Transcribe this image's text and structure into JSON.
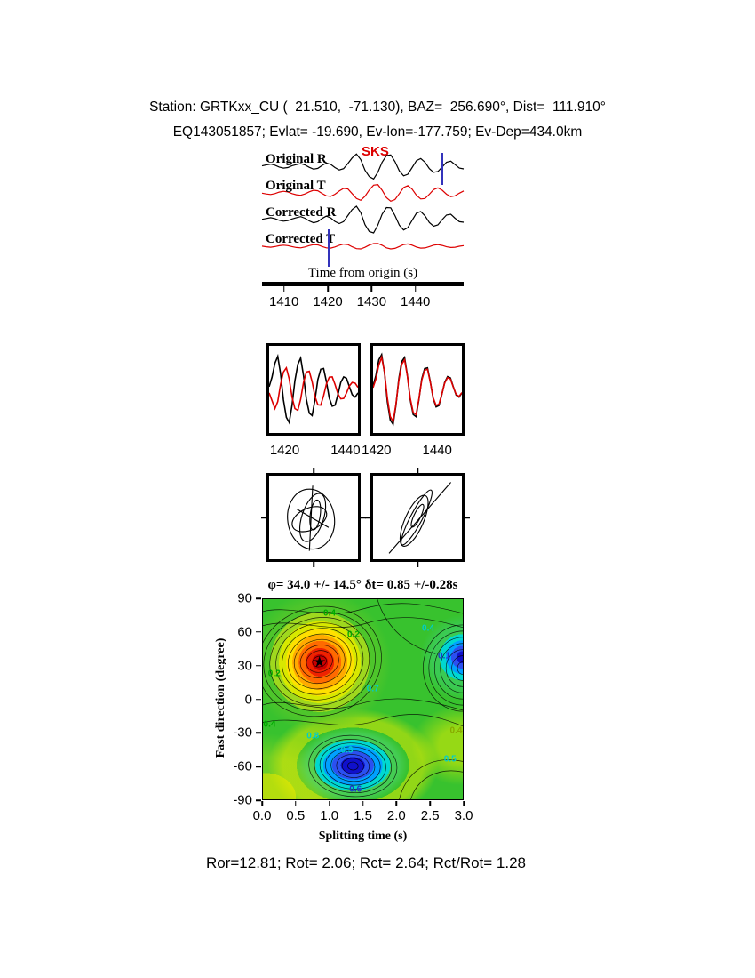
{
  "header": {
    "line1": "Station: GRTKxx_CU (  21.510,  -71.130), BAZ=  256.690°, Dist=  111.910°",
    "line2": "EQ143051857; Evlat= -19.690, Ev-lon=-177.759; Ev-Dep=434.0km"
  },
  "footer": {
    "stats": "Ror=12.81; Rot= 2.06; Rct= 2.64; Rct/Rot= 1.28"
  },
  "chart_data": [
    {
      "type": "line",
      "name": "seismogram-panel",
      "phase_label": "SKS",
      "xlabel": "Time from origin (s)",
      "x_ticks": [
        1410,
        1420,
        1430,
        1440
      ],
      "x_range": [
        1405,
        1451
      ],
      "window_markers": [
        1420,
        1446
      ],
      "series": [
        {
          "name": "Original R",
          "color": "#000000",
          "values": [
            0.03,
            0.1,
            0.16,
            0.08,
            -0.06,
            -0.14,
            -0.1,
            0.04,
            0.12,
            0.2,
            0.1,
            -0.08,
            -0.22,
            -0.16,
            0.06,
            0.24,
            0.14,
            -0.1,
            -0.28,
            -0.18,
            0.2,
            0.62,
            0.92,
            0.5,
            -0.3,
            -0.78,
            -0.95,
            -0.45,
            0.3,
            0.8,
            0.85,
            0.35,
            -0.35,
            -0.72,
            -0.6,
            -0.1,
            0.42,
            0.58,
            0.3,
            -0.18,
            -0.46,
            -0.4,
            -0.05,
            0.3,
            0.38,
            0.12,
            -0.14,
            -0.2
          ]
        },
        {
          "name": "Original T",
          "color": "#dd0000",
          "values": [
            -0.02,
            -0.08,
            -0.12,
            -0.05,
            0.06,
            0.12,
            0.07,
            -0.05,
            -0.14,
            -0.18,
            -0.08,
            0.08,
            0.2,
            0.16,
            -0.04,
            -0.22,
            -0.26,
            -0.1,
            0.14,
            0.34,
            0.3,
            -0.05,
            -0.42,
            -0.55,
            -0.25,
            0.22,
            0.58,
            0.62,
            0.2,
            -0.35,
            -0.62,
            -0.5,
            -0.05,
            0.4,
            0.55,
            0.28,
            -0.18,
            -0.45,
            -0.42,
            -0.1,
            0.25,
            0.38,
            0.2,
            -0.1,
            -0.28,
            -0.22,
            -0.02,
            0.15
          ]
        },
        {
          "name": "Corrected R",
          "color": "#000000",
          "values": [
            0.02,
            0.08,
            0.14,
            0.07,
            -0.05,
            -0.12,
            -0.08,
            0.05,
            0.14,
            0.22,
            0.1,
            -0.1,
            -0.24,
            -0.15,
            0.08,
            0.26,
            0.12,
            -0.14,
            -0.3,
            -0.15,
            0.3,
            0.75,
            1.0,
            0.52,
            -0.38,
            -0.9,
            -1.0,
            -0.42,
            0.4,
            0.9,
            0.88,
            0.3,
            -0.42,
            -0.78,
            -0.6,
            -0.05,
            0.48,
            0.6,
            0.28,
            -0.22,
            -0.5,
            -0.4,
            0.0,
            0.34,
            0.4,
            0.1,
            -0.16,
            -0.2
          ]
        },
        {
          "name": "Corrected T",
          "color": "#dd0000",
          "values": [
            0.01,
            -0.04,
            -0.07,
            -0.03,
            0.04,
            0.08,
            0.05,
            -0.03,
            -0.09,
            -0.12,
            -0.05,
            0.05,
            0.12,
            0.1,
            -0.02,
            -0.12,
            -0.14,
            -0.05,
            0.07,
            0.16,
            0.13,
            -0.04,
            -0.18,
            -0.2,
            -0.08,
            0.09,
            0.2,
            0.21,
            0.07,
            -0.12,
            -0.2,
            -0.16,
            -0.02,
            0.13,
            0.17,
            0.08,
            -0.06,
            -0.14,
            -0.13,
            -0.03,
            0.08,
            0.12,
            0.06,
            -0.04,
            -0.09,
            -0.07,
            0.0,
            0.05
          ]
        }
      ]
    },
    {
      "type": "line",
      "name": "window-waveforms-original",
      "x_ticks": [
        1420,
        1440
      ],
      "series": [
        {
          "name": "R",
          "color": "#000000",
          "values": [
            0.08,
            0.35,
            0.75,
            0.95,
            0.45,
            -0.3,
            -0.8,
            -0.95,
            -0.45,
            0.25,
            0.72,
            0.9,
            0.4,
            -0.28,
            -0.68,
            -0.75,
            -0.3,
            0.28,
            0.58,
            0.6,
            0.22,
            -0.25,
            -0.48,
            -0.45,
            -0.15,
            0.2,
            0.36,
            0.32,
            0.08,
            -0.15,
            -0.22,
            -0.1
          ]
        },
        {
          "name": "T",
          "color": "#dd0000",
          "values": [
            -0.1,
            -0.32,
            -0.55,
            -0.35,
            0.15,
            0.5,
            0.62,
            0.3,
            -0.22,
            -0.55,
            -0.6,
            -0.28,
            0.2,
            0.5,
            0.52,
            0.22,
            -0.2,
            -0.44,
            -0.45,
            -0.18,
            0.16,
            0.35,
            0.36,
            0.14,
            -0.12,
            -0.27,
            -0.26,
            -0.1,
            0.1,
            0.2,
            0.18,
            0.06
          ]
        }
      ]
    },
    {
      "type": "line",
      "name": "window-waveforms-corrected",
      "x_ticks": [
        1420,
        1440
      ],
      "series": [
        {
          "name": "R",
          "color": "#000000",
          "values": [
            0.1,
            0.4,
            0.85,
            1.0,
            0.48,
            -0.35,
            -0.88,
            -1.0,
            -0.45,
            0.3,
            0.8,
            0.92,
            0.4,
            -0.3,
            -0.72,
            -0.78,
            -0.3,
            0.3,
            0.6,
            0.62,
            0.22,
            -0.26,
            -0.5,
            -0.46,
            -0.15,
            0.2,
            0.37,
            0.33,
            0.08,
            -0.16,
            -0.22,
            -0.1
          ]
        },
        {
          "name": "T",
          "color": "#dd0000",
          "values": [
            0.05,
            0.3,
            0.7,
            0.92,
            0.5,
            -0.25,
            -0.78,
            -0.92,
            -0.42,
            0.25,
            0.72,
            0.85,
            0.38,
            -0.26,
            -0.66,
            -0.72,
            -0.28,
            0.26,
            0.55,
            0.58,
            0.2,
            -0.24,
            -0.46,
            -0.42,
            -0.14,
            0.18,
            0.34,
            0.3,
            0.07,
            -0.14,
            -0.2,
            -0.09
          ]
        }
      ]
    },
    {
      "type": "particle-motion",
      "name": "particle-motion-original",
      "description": "Elliptical particle motion before splitting correction"
    },
    {
      "type": "particle-motion",
      "name": "particle-motion-corrected",
      "description": "Linearized particle motion after splitting correction"
    },
    {
      "type": "heatmap",
      "name": "splitting-error-surface",
      "title": "φ= 34.0 +/- 14.5° δt= 0.85 +/-0.28s",
      "xlabel": "Splitting time (s)",
      "ylabel": "Fast direction (degree)",
      "x_ticks": [
        "0.0",
        "0.5",
        "1.0",
        "1.5",
        "2.0",
        "2.5",
        "3.0"
      ],
      "y_ticks": [
        90,
        60,
        30,
        0,
        -30,
        -60,
        -90
      ],
      "xlim": [
        0,
        3
      ],
      "ylim": [
        -90,
        90
      ],
      "best_fit": {
        "phi_deg": 34.0,
        "phi_err_deg": 14.5,
        "dt_s": 0.85,
        "dt_err_s": 0.28
      },
      "maximum": {
        "x": 0.85,
        "y": 34,
        "marker": "★"
      },
      "minima": [
        {
          "x": 3.0,
          "y": 28
        },
        {
          "x": 1.35,
          "y": -60
        }
      ],
      "contour_labels": [
        {
          "value": "0.4",
          "x": 1.0,
          "y": 77,
          "color": "#00aa00"
        },
        {
          "value": "0.2",
          "x": 1.36,
          "y": 58,
          "color": "#00aa00"
        },
        {
          "value": "0.4",
          "x": 2.48,
          "y": 64,
          "color": "#00cccc"
        },
        {
          "value": "0.1",
          "x": 2.72,
          "y": 39,
          "color": "#2233cc"
        },
        {
          "value": "0.2",
          "x": 0.17,
          "y": 23,
          "color": "#00aa00"
        },
        {
          "value": "0.7",
          "x": 1.65,
          "y": 9,
          "color": "#00cccc"
        },
        {
          "value": "0.4",
          "x": 0.1,
          "y": -23,
          "color": "#00aa00"
        },
        {
          "value": "0.8",
          "x": 0.75,
          "y": -33,
          "color": "#00cccc"
        },
        {
          "value": "0.3",
          "x": 1.26,
          "y": -46,
          "color": "#00cccc"
        },
        {
          "value": "0.6",
          "x": 1.39,
          "y": -81,
          "color": "#2233cc"
        },
        {
          "value": "0.5",
          "x": 2.81,
          "y": -54,
          "color": "#00cccc"
        },
        {
          "value": "0.4",
          "x": 2.9,
          "y": -28,
          "color": "#88aa00"
        }
      ]
    }
  ]
}
